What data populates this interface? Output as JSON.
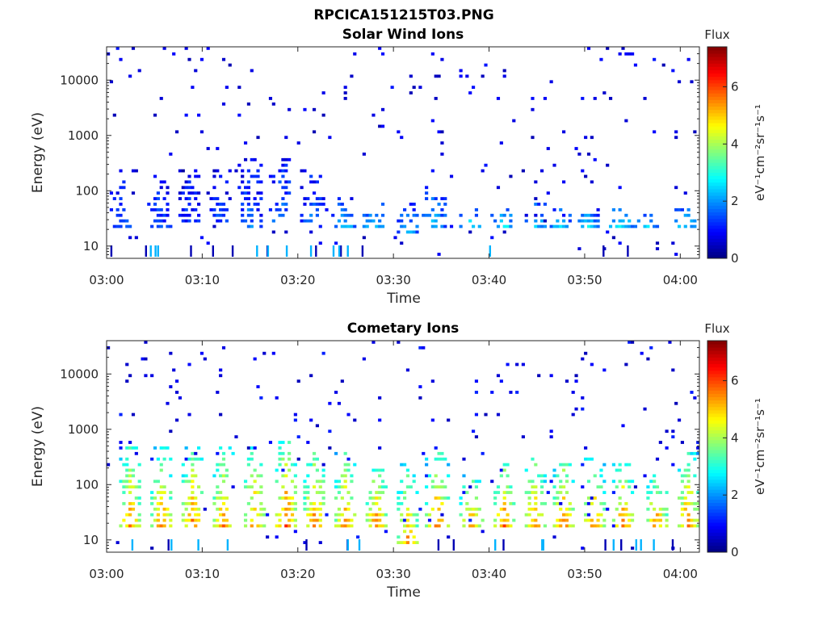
{
  "figure": {
    "filename_title": "RPCICA151215T03.PNG"
  },
  "chart_data": [
    {
      "type": "heatmap",
      "title": "Solar Wind Ions",
      "xlabel": "Time",
      "ylabel": "Energy (eV)",
      "x_ticks": [
        "03:00",
        "03:10",
        "03:20",
        "03:30",
        "03:40",
        "03:50",
        "04:00"
      ],
      "x_range_minutes": [
        0,
        62
      ],
      "y_ticks": [
        "10",
        "100",
        "1000",
        "10000"
      ],
      "y_scale": "log",
      "y_range": [
        6,
        40000
      ],
      "colorbar": {
        "title": "Flux",
        "label": "eV⁻¹cm⁻²sr⁻¹s⁻¹",
        "ticks": [
          "0",
          "2",
          "4",
          "6"
        ],
        "range": [
          0,
          7.4
        ],
        "colormap": "jet"
      },
      "bursts": [
        {
          "t": 1.5,
          "lo": 18,
          "hi": 160,
          "level": 1.7
        },
        {
          "t": 5.5,
          "lo": 18,
          "hi": 200,
          "level": 1.6
        },
        {
          "t": 8.7,
          "lo": 22,
          "hi": 220,
          "level": 1.4
        },
        {
          "t": 11.8,
          "lo": 22,
          "hi": 300,
          "level": 1.5
        },
        {
          "t": 15.0,
          "lo": 20,
          "hi": 350,
          "level": 1.8
        },
        {
          "t": 18.2,
          "lo": 22,
          "hi": 400,
          "level": 2.0
        },
        {
          "t": 21.5,
          "lo": 22,
          "hi": 180,
          "level": 1.9
        },
        {
          "t": 24.8,
          "lo": 20,
          "hi": 70,
          "level": 2.6
        },
        {
          "t": 28.0,
          "lo": 20,
          "hi": 60,
          "level": 2.8
        },
        {
          "t": 31.5,
          "lo": 14,
          "hi": 60,
          "level": 2.5
        },
        {
          "t": 34.3,
          "lo": 20,
          "hi": 120,
          "level": 2.4
        },
        {
          "t": 38.0,
          "lo": 20,
          "hi": 45,
          "level": 2.8
        },
        {
          "t": 41.5,
          "lo": 20,
          "hi": 50,
          "level": 3.0
        },
        {
          "t": 44.8,
          "lo": 20,
          "hi": 60,
          "level": 2.7
        },
        {
          "t": 47.5,
          "lo": 18,
          "hi": 50,
          "level": 2.9
        },
        {
          "t": 50.5,
          "lo": 20,
          "hi": 50,
          "level": 2.7
        },
        {
          "t": 53.8,
          "lo": 18,
          "hi": 50,
          "level": 3.2
        },
        {
          "t": 56.5,
          "lo": 18,
          "hi": 40,
          "level": 2.8
        },
        {
          "t": 60.5,
          "lo": 18,
          "hi": 45,
          "level": 2.9
        }
      ],
      "background_level": 0.9
    },
    {
      "type": "heatmap",
      "title": "Cometary Ions",
      "xlabel": "Time",
      "ylabel": "Energy (eV)",
      "x_ticks": [
        "03:00",
        "03:10",
        "03:20",
        "03:30",
        "03:40",
        "03:50",
        "04:00"
      ],
      "x_range_minutes": [
        0,
        62
      ],
      "y_ticks": [
        "10",
        "100",
        "1000",
        "10000"
      ],
      "y_scale": "log",
      "y_range": [
        6,
        40000
      ],
      "colorbar": {
        "title": "Flux",
        "label": "eV⁻¹cm⁻²sr⁻¹s⁻¹",
        "ticks": [
          "0",
          "2",
          "4",
          "6"
        ],
        "range": [
          0,
          7.4
        ],
        "colormap": "jet"
      },
      "bursts": [
        {
          "t": 2.5,
          "lo": 15,
          "hi": 450,
          "level": 5.7
        },
        {
          "t": 5.8,
          "lo": 15,
          "hi": 480,
          "level": 5.8
        },
        {
          "t": 9.0,
          "lo": 15,
          "hi": 500,
          "level": 5.8
        },
        {
          "t": 12.2,
          "lo": 15,
          "hi": 450,
          "level": 5.7
        },
        {
          "t": 15.5,
          "lo": 15,
          "hi": 500,
          "level": 5.6
        },
        {
          "t": 18.8,
          "lo": 15,
          "hi": 600,
          "level": 6.2
        },
        {
          "t": 21.8,
          "lo": 15,
          "hi": 450,
          "level": 5.9
        },
        {
          "t": 25.0,
          "lo": 15,
          "hi": 350,
          "level": 5.7
        },
        {
          "t": 28.2,
          "lo": 15,
          "hi": 200,
          "level": 5.9
        },
        {
          "t": 31.5,
          "lo": 8,
          "hi": 250,
          "level": 5.4
        },
        {
          "t": 34.6,
          "lo": 15,
          "hi": 350,
          "level": 6.0
        },
        {
          "t": 38.2,
          "lo": 15,
          "hi": 150,
          "level": 5.7
        },
        {
          "t": 41.6,
          "lo": 15,
          "hi": 250,
          "level": 5.9
        },
        {
          "t": 44.8,
          "lo": 15,
          "hi": 300,
          "level": 5.8
        },
        {
          "t": 47.8,
          "lo": 15,
          "hi": 300,
          "level": 5.9
        },
        {
          "t": 51.0,
          "lo": 15,
          "hi": 300,
          "level": 5.8
        },
        {
          "t": 54.0,
          "lo": 15,
          "hi": 250,
          "level": 5.9
        },
        {
          "t": 57.5,
          "lo": 15,
          "hi": 150,
          "level": 5.8
        },
        {
          "t": 60.8,
          "lo": 15,
          "hi": 350,
          "level": 5.9
        }
      ],
      "background_level": 1.0
    }
  ]
}
